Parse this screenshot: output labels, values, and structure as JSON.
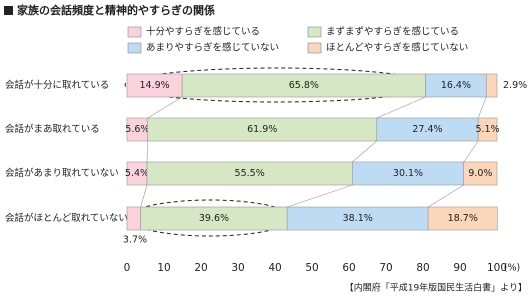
{
  "chart_data": {
    "type": "bar",
    "orientation": "horizontal",
    "stacked": true,
    "title": "家族の会話頻度と精神的やすらぎの関係",
    "categories": [
      "会話が十分に取れている",
      "会話がまあ取れている",
      "会話があまり取れていない",
      "会話がほとんど取れていない"
    ],
    "series": [
      {
        "name": "十分やすらぎを感じている",
        "color": "#fbd3dc",
        "values": [
          14.9,
          5.6,
          5.4,
          3.7
        ],
        "value_labels": [
          "14.9%",
          "5.6%",
          "5.4%",
          "3.7%"
        ]
      },
      {
        "name": "まずまずやすらぎを感じている",
        "color": "#d5e8c3",
        "values": [
          65.8,
          61.9,
          55.5,
          39.6
        ],
        "value_labels": [
          "65.8%",
          "61.9%",
          "55.5%",
          "39.6%"
        ]
      },
      {
        "name": "あまりやすらぎを感じていない",
        "color": "#bddcf4",
        "values": [
          16.4,
          27.4,
          30.1,
          38.1
        ],
        "value_labels": [
          "16.4%",
          "27.4%",
          "30.1%",
          "38.1%"
        ]
      },
      {
        "name": "ほとんどやすらぎを感じていない",
        "color": "#fbd6b8",
        "values": [
          2.9,
          5.1,
          9.0,
          18.7
        ],
        "value_labels": [
          "2.9%",
          "5.1%",
          "9.0%",
          "18.7%"
        ]
      }
    ],
    "xlim": [
      0,
      100
    ],
    "xticks": [
      0,
      10,
      20,
      30,
      40,
      50,
      60,
      70,
      80,
      90,
      100
    ],
    "x_unit": "(%)",
    "source": "【内閣府「平成19年版国民生活白書」より】"
  }
}
